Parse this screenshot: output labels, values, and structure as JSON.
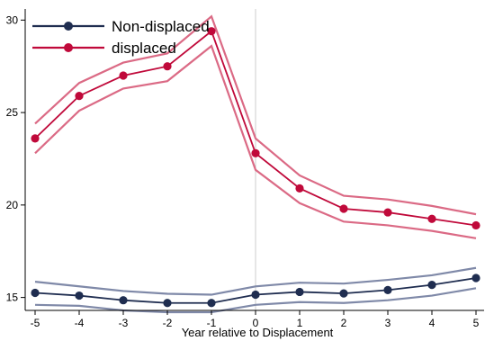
{
  "chart_data": {
    "type": "line",
    "xlabel": "Year relative to Displacement",
    "ylabel": "",
    "title": "",
    "x": [
      -5,
      -4,
      -3,
      -2,
      -1,
      0,
      1,
      2,
      3,
      4,
      5
    ],
    "x_ticks": [
      "-5",
      "-4",
      "-3",
      "-2",
      "-1",
      "0",
      "1",
      "2",
      "3",
      "4",
      "5"
    ],
    "y_ticks": [
      "15",
      "20",
      "25",
      "30"
    ],
    "xlim": [
      -5,
      5
    ],
    "ylim": [
      14.3,
      30.6
    ],
    "grid": false,
    "reference_line_x": 0,
    "legend_position": "top-left",
    "series": [
      {
        "name": "Non-displaced",
        "color": "#1f2d50",
        "ci_color": "#7f89a8",
        "values": [
          15.25,
          15.1,
          14.85,
          14.7,
          14.7,
          15.15,
          15.3,
          15.22,
          15.4,
          15.68,
          16.05
        ],
        "upper": [
          15.85,
          15.6,
          15.35,
          15.2,
          15.15,
          15.6,
          15.8,
          15.75,
          15.95,
          16.2,
          16.6
        ],
        "lower": [
          14.6,
          14.55,
          14.3,
          14.2,
          14.2,
          14.6,
          14.75,
          14.7,
          14.85,
          15.1,
          15.5
        ]
      },
      {
        "name": "displaced",
        "color": "#c0093a",
        "ci_color": "#db6a85",
        "values": [
          23.6,
          25.9,
          27.0,
          27.5,
          29.4,
          22.8,
          20.9,
          19.8,
          19.6,
          19.25,
          18.9
        ],
        "upper": [
          24.4,
          26.6,
          27.7,
          28.2,
          30.2,
          23.6,
          21.6,
          20.5,
          20.3,
          19.95,
          19.5
        ],
        "lower": [
          22.8,
          25.1,
          26.3,
          26.7,
          28.6,
          21.9,
          20.1,
          19.1,
          18.9,
          18.6,
          18.2
        ]
      }
    ]
  }
}
